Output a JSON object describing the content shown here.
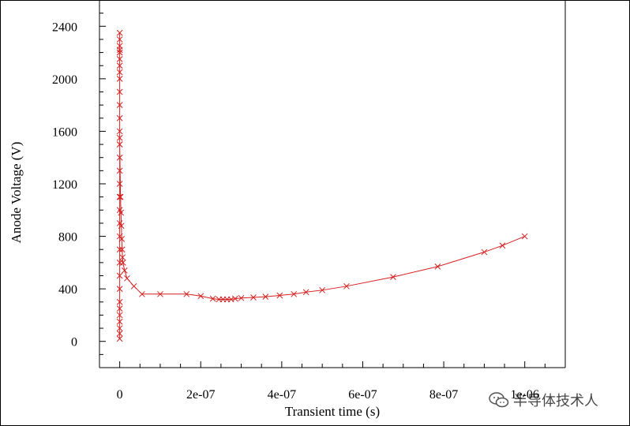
{
  "chart_data": {
    "type": "scatter",
    "title": "",
    "xlabel": "Transient time (s)",
    "ylabel": "Anode Voltage (V)",
    "xlim": [
      -5e-08,
      1.1e-06
    ],
    "ylim": [
      -200,
      2600
    ],
    "x_ticks": [
      0,
      2e-07,
      4e-07,
      6e-07,
      8e-07,
      1e-06
    ],
    "x_tick_labels": [
      "0",
      "2e-07",
      "4e-07",
      "6e-07",
      "8e-07",
      "1e-06"
    ],
    "y_ticks": [
      0,
      400,
      800,
      1200,
      1600,
      2000,
      2400
    ],
    "y_tick_labels": [
      "0",
      "400",
      "800",
      "1200",
      "1600",
      "2000",
      "2400"
    ],
    "marker": "x",
    "color": "#d42020",
    "series": [
      {
        "x": [
          0,
          0,
          0,
          0,
          0,
          0,
          0,
          0,
          0,
          0,
          0,
          0,
          0,
          0,
          0,
          0,
          0,
          0,
          0,
          0,
          0,
          0,
          0,
          0,
          0,
          0,
          0,
          0,
          0,
          0,
          0,
          0,
          0,
          0,
          0,
          2e-09,
          3e-09,
          4e-09,
          5e-09,
          6e-09,
          7e-09,
          8e-09,
          1.2e-08,
          1.8e-08,
          3.5e-08,
          5.5e-08,
          1e-07,
          1.65e-07,
          2e-07,
          2.3e-07,
          2.45e-07,
          2.55e-07,
          2.65e-07,
          2.75e-07,
          2.85e-07,
          3e-07,
          3.3e-07,
          3.6e-07,
          3.95e-07,
          4.3e-07,
          4.6e-07,
          5e-07,
          5.6e-07,
          6.75e-07,
          7.85e-07,
          9e-07,
          9.45e-07,
          1e-06
        ],
        "y": [
          20,
          60,
          100,
          150,
          200,
          250,
          300,
          400,
          500,
          600,
          700,
          800,
          900,
          1000,
          1100,
          1200,
          1300,
          1400,
          1500,
          1550,
          1600,
          1700,
          1800,
          1900,
          2000,
          2050,
          2100,
          2150,
          2200,
          2220,
          2250,
          2300,
          2350,
          2200,
          1500,
          1100,
          980,
          880,
          780,
          700,
          640,
          600,
          540,
          480,
          420,
          360,
          360,
          360,
          345,
          325,
          320,
          320,
          320,
          320,
          325,
          330,
          335,
          340,
          350,
          360,
          375,
          390,
          420,
          490,
          570,
          680,
          730,
          800
        ]
      }
    ],
    "grid": false,
    "legend": "none"
  },
  "watermark": {
    "text": "半导体技术人",
    "icon": "wechat-icon"
  }
}
